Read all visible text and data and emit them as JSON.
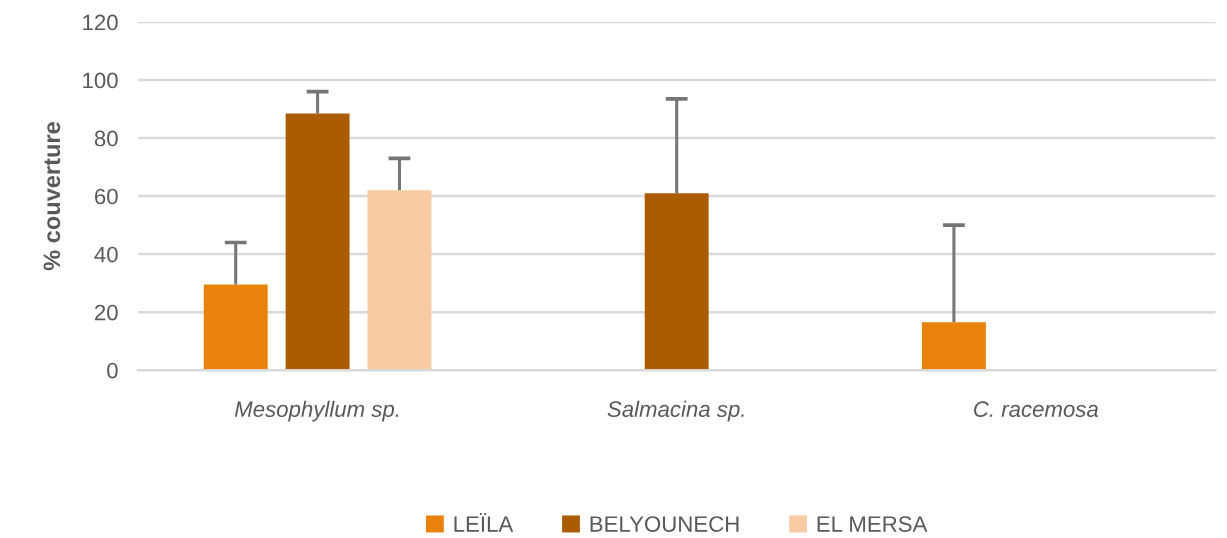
{
  "chart_data": {
    "type": "bar",
    "ylabel": "% couverture",
    "categories": [
      "Mesophyllum sp.",
      "Salmacina sp.",
      "C. racemosa"
    ],
    "series": [
      {
        "name": "LEÏLA",
        "color": "#e8820a",
        "values": [
          29.5,
          null,
          16.5
        ],
        "errors": [
          [
            29.5,
            44
          ],
          null,
          [
            16.5,
            50
          ]
        ]
      },
      {
        "name": "BELYOUNECH",
        "color": "#ab5b00",
        "values": [
          88.5,
          61,
          null
        ],
        "errors": [
          [
            88.5,
            96
          ],
          [
            61,
            93.5
          ],
          null
        ]
      },
      {
        "name": "EL MERSA",
        "color": "#f9cba2",
        "values": [
          62,
          null,
          null
        ],
        "errors": [
          [
            62,
            73
          ],
          null,
          null
        ]
      }
    ],
    "ylim": [
      0,
      120
    ],
    "yticks": [
      0,
      20,
      40,
      60,
      80,
      100,
      120
    ],
    "grid": "y",
    "legend": "bottom"
  }
}
